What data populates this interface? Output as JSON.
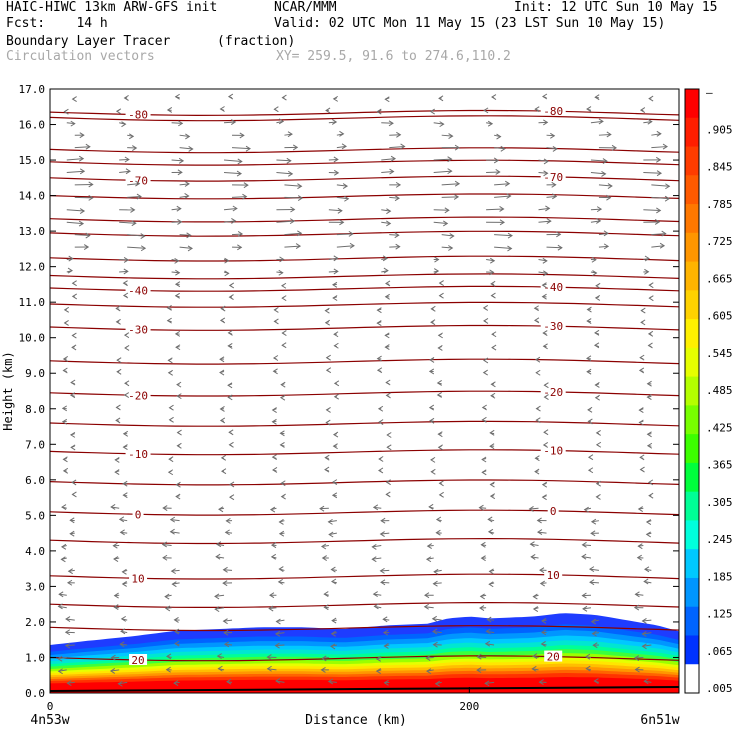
{
  "header": {
    "model": "HAIC-HIWC 13km ARW-GFS init",
    "center": "NCAR/MMM",
    "init": "Init: 12 UTC Sun 10 May 15",
    "fcst": "Fcst:    14 h",
    "valid": "Valid: 02 UTC Mon 11 May 15 (23 LST Sun 10 May 15)",
    "field": "Boundary Layer Tracer",
    "units": "(fraction)",
    "overlay": "Circulation vectors",
    "xy": "XY= 259.5, 91.6 to 274.6,110.2"
  },
  "chart_data": {
    "type": "heatmap",
    "xlabel": "Distance (km)",
    "ylabel": "Height (km)",
    "xlim": [
      0,
      300
    ],
    "ylim": [
      0,
      17
    ],
    "x_ticks": [
      {
        "value": 0,
        "label": "0"
      },
      {
        "value": 200,
        "label": "200"
      }
    ],
    "x_end_labels": {
      "left": "4n53w",
      "right": "6n51w"
    },
    "y_ticks": [
      "0.0",
      "1.0",
      "2.0",
      "3.0",
      "4.0",
      "5.0",
      "6.0",
      "7.0",
      "8.0",
      "9.0",
      "10.0",
      "11.0",
      "12.0",
      "13.0",
      "14.0",
      "15.0",
      "16.0",
      "17.0"
    ],
    "tracer_top_km": [
      [
        0,
        1.35
      ],
      [
        15,
        1.45
      ],
      [
        40,
        1.6
      ],
      [
        60,
        1.75
      ],
      [
        80,
        1.8
      ],
      [
        100,
        1.85
      ],
      [
        120,
        1.85
      ],
      [
        140,
        1.8
      ],
      [
        160,
        1.9
      ],
      [
        180,
        1.95
      ],
      [
        190,
        2.1
      ],
      [
        200,
        2.15
      ],
      [
        210,
        2.1
      ],
      [
        230,
        2.15
      ],
      [
        245,
        2.25
      ],
      [
        260,
        2.2
      ],
      [
        275,
        2.05
      ],
      [
        290,
        1.9
      ],
      [
        302,
        1.7
      ]
    ],
    "temperature_contours": [
      {
        "value": -80,
        "label": "-80",
        "height_km": 16.35
      },
      {
        "value": -70,
        "label": "-70",
        "height_km": 14.5
      },
      {
        "value": -40,
        "label": "-40",
        "height_km": 11.4
      },
      {
        "value": -30,
        "label": "-30",
        "height_km": 10.3
      },
      {
        "value": -20,
        "label": "-20",
        "height_km": 8.45
      },
      {
        "value": -10,
        "label": "-10",
        "height_km": 6.8
      },
      {
        "value": 0,
        "label": "0",
        "height_km": 5.1
      },
      {
        "value": 10,
        "label": "10",
        "height_km": 3.3
      },
      {
        "value": 20,
        "label": "20",
        "height_km": 1.0
      }
    ],
    "unlabeled_contour_heights_km": [
      16.2,
      15.3,
      14.95,
      14.0,
      13.35,
      12.95,
      12.25,
      11.75,
      10.95,
      9.35,
      7.6,
      5.95,
      4.3,
      2.5,
      1.85
    ],
    "colorbar": {
      "labels": [
        "–",
        ".905",
        ".845",
        ".785",
        ".725",
        ".665",
        ".605",
        ".545",
        ".485",
        ".425",
        ".365",
        ".305",
        ".245",
        ".185",
        ".125",
        ".065",
        ".005"
      ],
      "colors": [
        "#ff0000",
        "#ff1e00",
        "#ff3c00",
        "#ff5a00",
        "#ff7800",
        "#ff9600",
        "#ffb400",
        "#ffd200",
        "#fff000",
        "#e6ff00",
        "#b4ff00",
        "#78ff00",
        "#3cff00",
        "#00ff3c",
        "#00ff96",
        "#00ffdc",
        "#00c8ff",
        "#0096ff",
        "#0064ff",
        "#0032ff",
        "#ffffff"
      ]
    }
  }
}
